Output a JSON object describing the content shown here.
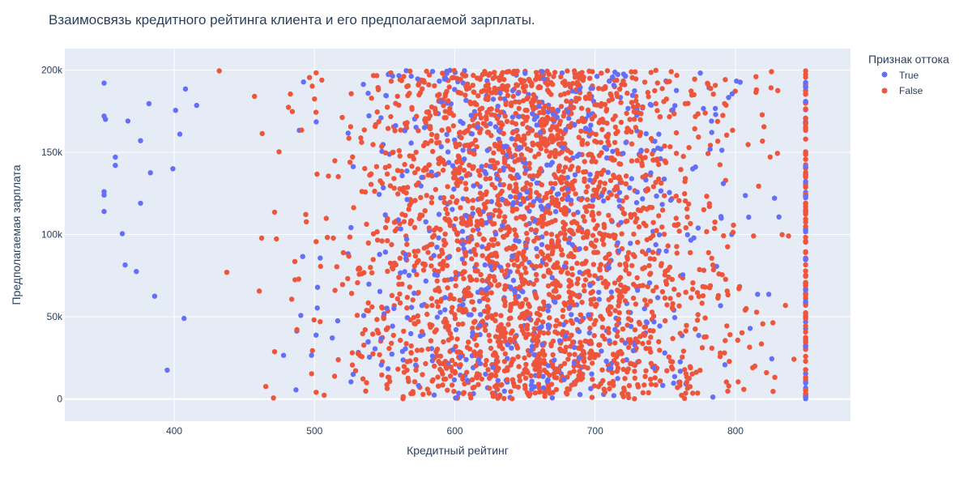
{
  "chart_data": {
    "type": "scatter",
    "title": "Взаимосвязь кредитного рейтинга клиента и его предполагаемой зарплаты.",
    "xlabel": "Кредитный рейтинг",
    "ylabel": "Предполагаемая зарплата",
    "xlim": [
      322,
      882
    ],
    "ylim": [
      -13500,
      213000
    ],
    "x_ticks": [
      400,
      500,
      600,
      700,
      800
    ],
    "x_tick_labels": [
      "400",
      "500",
      "600",
      "700",
      "800"
    ],
    "y_ticks": [
      0,
      50000,
      100000,
      150000,
      200000
    ],
    "y_tick_labels": [
      "0",
      "50k",
      "100k",
      "150k",
      "200k"
    ],
    "grid": true,
    "background": "#e5ecf6",
    "legend": {
      "title": "Признак оттока",
      "placement": "top-right outside",
      "entries": [
        "True",
        "False"
      ]
    },
    "series": [
      {
        "name": "True",
        "color": "#636efa",
        "generated_range": {
          "x": [
            350,
            850
          ],
          "y": [
            0,
            200000
          ],
          "count": 700
        },
        "points": [
          [
            350,
            192000
          ],
          [
            350,
            172000
          ],
          [
            351,
            170000
          ],
          [
            350,
            126000
          ],
          [
            350,
            124000
          ],
          [
            350,
            114000
          ],
          [
            358,
            147000
          ],
          [
            358,
            142000
          ],
          [
            363,
            100500
          ],
          [
            365,
            81500
          ],
          [
            367,
            169000
          ],
          [
            373,
            77500
          ],
          [
            376,
            157000
          ],
          [
            376,
            119000
          ],
          [
            382,
            179500
          ],
          [
            383,
            137500
          ],
          [
            386,
            62500
          ],
          [
            395,
            17500
          ],
          [
            399,
            140000
          ],
          [
            401,
            175500
          ],
          [
            404,
            161000
          ],
          [
            407,
            49000
          ],
          [
            408,
            188500
          ],
          [
            416,
            178500
          ]
        ]
      },
      {
        "name": "False",
        "color": "#ef553b",
        "generated_range": {
          "x": [
            405,
            850
          ],
          "y": [
            0,
            200000
          ],
          "count": 2600
        }
      }
    ]
  }
}
